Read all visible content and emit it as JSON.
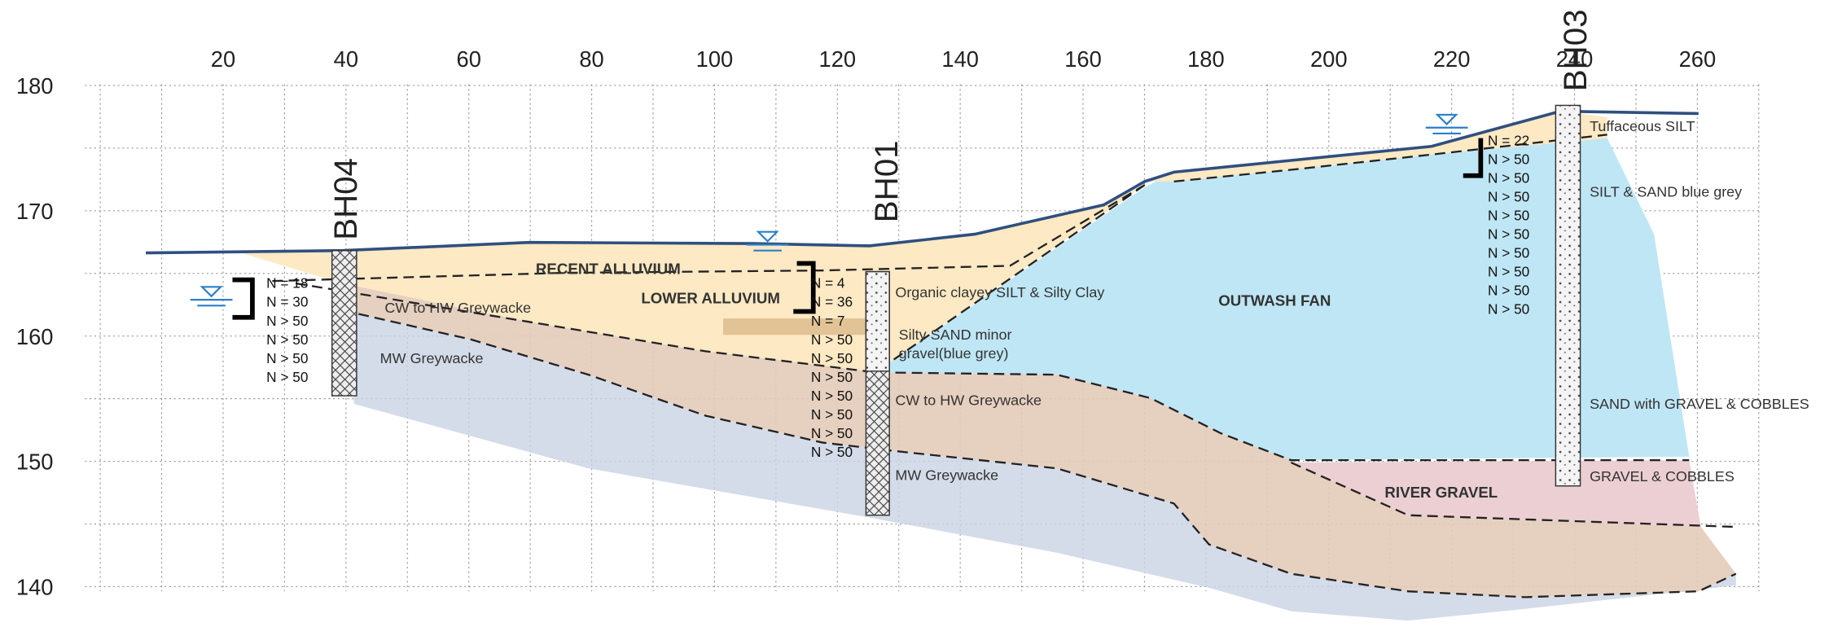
{
  "axes": {
    "xticks": [
      20,
      40,
      60,
      80,
      100,
      120,
      140,
      160,
      180,
      200,
      220,
      240,
      260
    ],
    "yticks": [
      140,
      150,
      160,
      170,
      180
    ]
  },
  "boreholes": [
    {
      "name": "BH04",
      "spt": [
        "N = 18",
        "N = 30",
        "N > 50",
        "N > 50",
        "N > 50",
        "N > 50"
      ]
    },
    {
      "name": "BH01",
      "spt": [
        "N = 4",
        "N = 36",
        "N = 7",
        "N > 50",
        "N > 50",
        "N > 50",
        "N > 50",
        "N > 50",
        "N > 50",
        "N > 50"
      ]
    },
    {
      "name": "BH03",
      "spt": [
        "N = 22",
        "N > 50",
        "N > 50",
        "N > 50",
        "N > 50",
        "N > 50",
        "N > 50",
        "N > 50",
        "N > 50",
        "N > 50"
      ]
    }
  ],
  "units": {
    "recent_alluvium": "RECENT ALLUVIUM",
    "lower_alluvium": "LOWER ALLUVIUM",
    "outwash_fan": "OUTWASH FAN",
    "river_gravel": "RIVER GRAVEL",
    "bh04_cw": "CW to HW Greywacke",
    "bh04_mw": "MW Greywacke",
    "bh01_organic": "Organic clayey SILT & Silty Clay",
    "bh01_sand_1": "Silty SAND minor",
    "bh01_sand_2": "gravel(blue grey)",
    "bh01_cw": "CW to HW Greywacke",
    "bh01_mw": "MW Greywacke",
    "bh03_tuff": "Tuffaceous SILT",
    "bh03_silt": "SILT & SAND blue grey",
    "bh03_sand": "SAND with GRAVEL & COBBLES",
    "bh03_gravel": "GRAVEL & COBBLES"
  }
}
